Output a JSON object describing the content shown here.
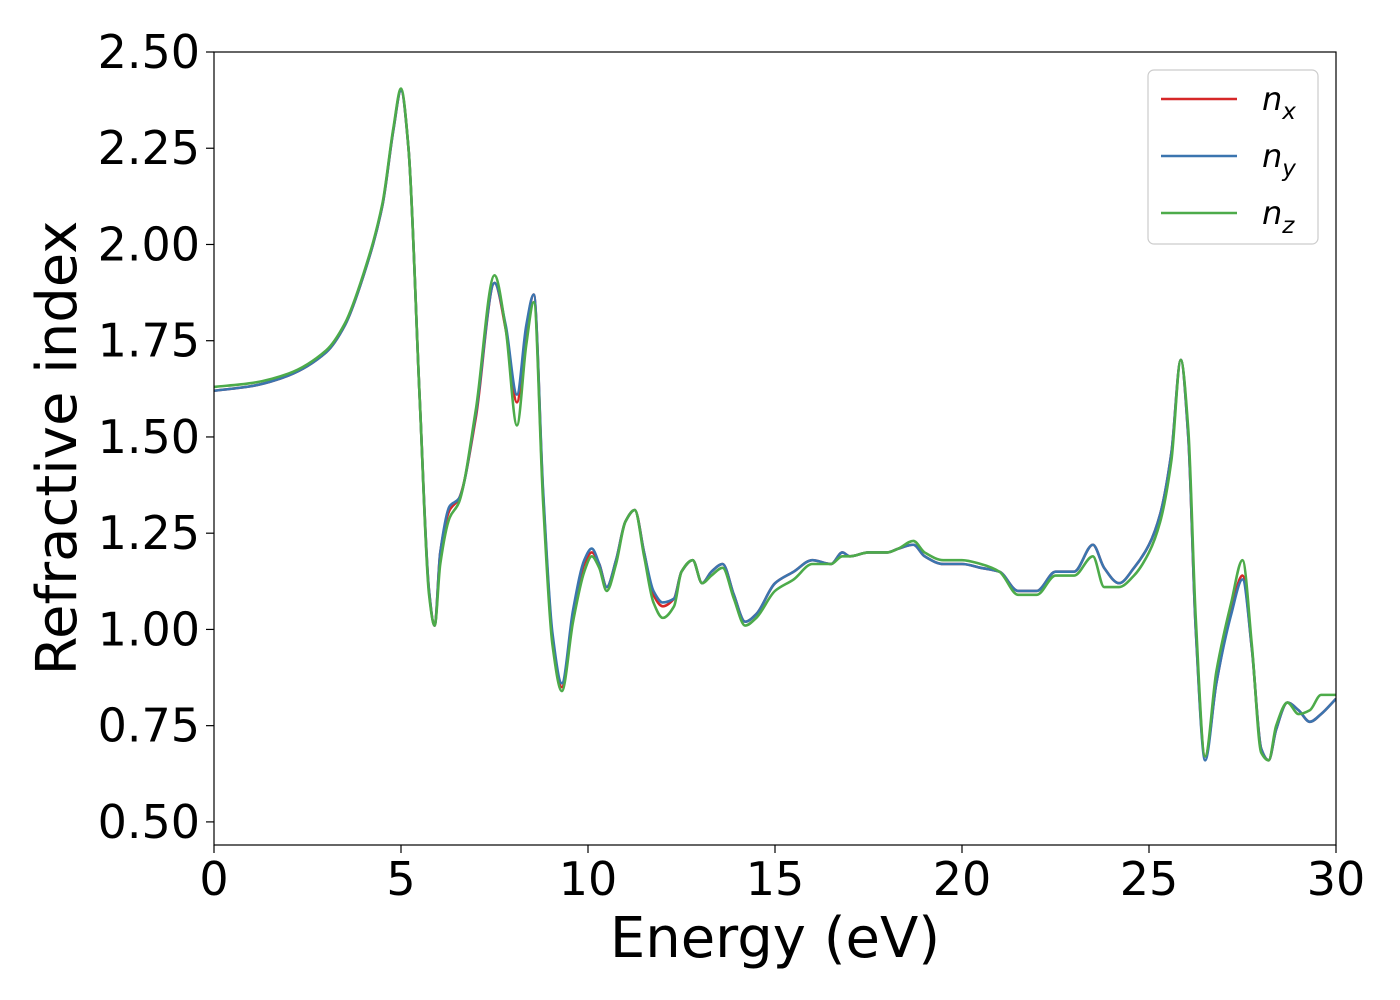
{
  "chart_data": {
    "type": "line",
    "title": "",
    "xlabel": "Energy (eV)",
    "ylabel": "Refractive index",
    "xlim": [
      0,
      30
    ],
    "ylim": [
      0.44,
      2.5
    ],
    "xticks": [
      "0",
      "5",
      "10",
      "15",
      "20",
      "25",
      "30"
    ],
    "yticks": [
      "0.50",
      "0.75",
      "1.00",
      "1.25",
      "1.50",
      "1.75",
      "2.00",
      "2.25",
      "2.50"
    ],
    "legend_position": "top-right",
    "grid": false,
    "series": [
      {
        "name": "n",
        "subscript": "x",
        "color": "#d62728",
        "x": [
          0,
          1,
          2,
          3,
          3.5,
          4,
          4.5,
          4.8,
          5.0,
          5.2,
          5.5,
          5.75,
          5.9,
          6.05,
          6.3,
          6.55,
          7.0,
          7.5,
          7.8,
          8.1,
          8.35,
          8.55,
          8.8,
          9.05,
          9.3,
          9.6,
          9.9,
          10.1,
          10.3,
          10.5,
          10.75,
          11.0,
          11.25,
          11.5,
          11.75,
          12.0,
          12.3,
          12.5,
          12.8,
          13.05,
          13.3,
          13.6,
          13.9,
          14.2,
          14.5,
          15.0,
          15.5,
          16.0,
          16.5,
          16.8,
          17.0,
          17.5,
          18.0,
          18.3,
          18.7,
          19.0,
          19.5,
          20.0,
          20.5,
          21.0,
          21.5,
          22.0,
          22.5,
          23.0,
          23.5,
          23.8,
          24.2,
          24.6,
          25.0,
          25.3,
          25.6,
          25.85,
          26.05,
          26.25,
          26.5,
          26.8,
          27.2,
          27.5,
          27.75,
          28.0,
          28.2,
          28.4,
          28.7,
          29.0,
          29.3,
          29.6,
          30.0
        ],
        "values": [
          1.62,
          1.632,
          1.66,
          1.72,
          1.79,
          1.92,
          2.1,
          2.3,
          2.4,
          2.25,
          1.6,
          1.1,
          1.01,
          1.2,
          1.31,
          1.34,
          1.55,
          1.9,
          1.78,
          1.59,
          1.78,
          1.87,
          1.35,
          0.98,
          0.85,
          1.04,
          1.17,
          1.2,
          1.17,
          1.11,
          1.18,
          1.28,
          1.31,
          1.2,
          1.09,
          1.06,
          1.08,
          1.15,
          1.18,
          1.12,
          1.15,
          1.17,
          1.09,
          1.02,
          1.04,
          1.12,
          1.15,
          1.18,
          1.17,
          1.2,
          1.19,
          1.2,
          1.2,
          1.21,
          1.22,
          1.19,
          1.17,
          1.17,
          1.16,
          1.15,
          1.1,
          1.1,
          1.15,
          1.15,
          1.22,
          1.16,
          1.12,
          1.16,
          1.22,
          1.3,
          1.46,
          1.7,
          1.5,
          1.0,
          0.67,
          0.86,
          1.05,
          1.14,
          0.95,
          0.69,
          0.66,
          0.74,
          0.81,
          0.79,
          0.76,
          0.78,
          0.82
        ]
      },
      {
        "name": "n",
        "subscript": "y",
        "color": "#3b75af",
        "x": [
          0,
          1,
          2,
          3,
          3.5,
          4,
          4.5,
          4.8,
          5.0,
          5.2,
          5.5,
          5.75,
          5.9,
          6.05,
          6.3,
          6.55,
          7.0,
          7.5,
          7.8,
          8.1,
          8.35,
          8.55,
          8.8,
          9.05,
          9.3,
          9.6,
          9.9,
          10.1,
          10.3,
          10.5,
          10.75,
          11.0,
          11.25,
          11.5,
          11.75,
          12.0,
          12.3,
          12.5,
          12.8,
          13.05,
          13.3,
          13.6,
          13.9,
          14.2,
          14.5,
          15.0,
          15.5,
          16.0,
          16.5,
          16.8,
          17.0,
          17.5,
          18.0,
          18.3,
          18.7,
          19.0,
          19.5,
          20.0,
          20.5,
          21.0,
          21.5,
          22.0,
          22.5,
          23.0,
          23.5,
          23.8,
          24.2,
          24.6,
          25.0,
          25.3,
          25.6,
          25.85,
          26.05,
          26.25,
          26.5,
          26.8,
          27.2,
          27.5,
          27.75,
          28.0,
          28.2,
          28.4,
          28.7,
          29.0,
          29.3,
          29.6,
          30.0
        ],
        "values": [
          1.62,
          1.632,
          1.66,
          1.72,
          1.79,
          1.92,
          2.1,
          2.3,
          2.4,
          2.25,
          1.6,
          1.1,
          1.01,
          1.2,
          1.32,
          1.34,
          1.56,
          1.9,
          1.79,
          1.61,
          1.79,
          1.87,
          1.36,
          0.99,
          0.86,
          1.05,
          1.18,
          1.21,
          1.17,
          1.11,
          1.18,
          1.28,
          1.31,
          1.2,
          1.1,
          1.07,
          1.08,
          1.15,
          1.18,
          1.12,
          1.15,
          1.17,
          1.09,
          1.02,
          1.04,
          1.12,
          1.15,
          1.18,
          1.17,
          1.2,
          1.19,
          1.2,
          1.2,
          1.21,
          1.22,
          1.19,
          1.17,
          1.17,
          1.16,
          1.15,
          1.1,
          1.1,
          1.15,
          1.15,
          1.22,
          1.16,
          1.12,
          1.16,
          1.22,
          1.3,
          1.46,
          1.7,
          1.5,
          1.0,
          0.66,
          0.86,
          1.04,
          1.13,
          0.95,
          0.69,
          0.66,
          0.74,
          0.81,
          0.79,
          0.76,
          0.78,
          0.82
        ]
      },
      {
        "name": "n",
        "subscript": "z",
        "color": "#4dab4a",
        "x": [
          0,
          1,
          2,
          3,
          3.5,
          4,
          4.5,
          4.8,
          5.0,
          5.2,
          5.5,
          5.75,
          5.9,
          6.05,
          6.3,
          6.55,
          7.0,
          7.5,
          7.8,
          8.1,
          8.35,
          8.55,
          8.8,
          9.05,
          9.3,
          9.6,
          9.9,
          10.1,
          10.3,
          10.5,
          10.75,
          11.0,
          11.25,
          11.5,
          11.75,
          12.0,
          12.3,
          12.5,
          12.8,
          13.05,
          13.3,
          13.6,
          13.9,
          14.2,
          14.5,
          15.0,
          15.5,
          16.0,
          16.5,
          16.8,
          17.0,
          17.5,
          18.0,
          18.3,
          18.7,
          19.0,
          19.5,
          20.0,
          20.5,
          21.0,
          21.5,
          22.0,
          22.5,
          23.0,
          23.5,
          23.8,
          24.2,
          24.6,
          25.0,
          25.3,
          25.6,
          25.85,
          26.05,
          26.25,
          26.5,
          26.8,
          27.2,
          27.5,
          27.75,
          28.0,
          28.2,
          28.4,
          28.7,
          29.0,
          29.3,
          29.6,
          30.0
        ],
        "values": [
          1.63,
          1.64,
          1.665,
          1.725,
          1.795,
          1.925,
          2.105,
          2.305,
          2.405,
          2.25,
          1.6,
          1.09,
          1.01,
          1.17,
          1.29,
          1.33,
          1.57,
          1.92,
          1.78,
          1.53,
          1.74,
          1.85,
          1.33,
          0.96,
          0.84,
          1.02,
          1.15,
          1.19,
          1.16,
          1.1,
          1.17,
          1.28,
          1.31,
          1.19,
          1.07,
          1.03,
          1.06,
          1.15,
          1.18,
          1.12,
          1.14,
          1.16,
          1.08,
          1.01,
          1.03,
          1.1,
          1.13,
          1.17,
          1.17,
          1.19,
          1.19,
          1.2,
          1.2,
          1.21,
          1.23,
          1.2,
          1.18,
          1.18,
          1.17,
          1.15,
          1.09,
          1.09,
          1.14,
          1.14,
          1.19,
          1.11,
          1.11,
          1.14,
          1.2,
          1.28,
          1.44,
          1.7,
          1.52,
          1.03,
          0.67,
          0.89,
          1.07,
          1.18,
          0.96,
          0.68,
          0.66,
          0.75,
          0.81,
          0.78,
          0.79,
          0.83,
          0.83
        ]
      }
    ]
  }
}
